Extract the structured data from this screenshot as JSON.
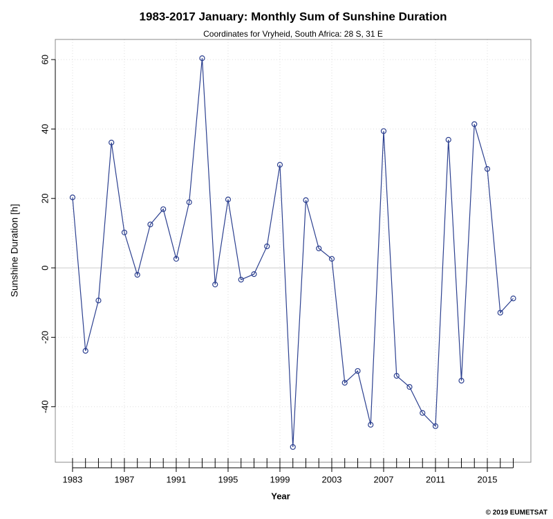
{
  "chart_data": {
    "type": "line",
    "title": "1983-2017 January: Monthly Sum of Sunshine Duration",
    "subtitle": "Coordinates for Vryheid, South Africa: 28 S, 31 E",
    "xlabel": "Year",
    "ylabel": "Sunshine Duration [h]",
    "credit": "© 2019 EUMETSAT",
    "x": [
      1983,
      1984,
      1985,
      1986,
      1987,
      1988,
      1989,
      1990,
      1991,
      1992,
      1993,
      1994,
      1995,
      1996,
      1997,
      1998,
      1999,
      2000,
      2001,
      2002,
      2003,
      2004,
      2005,
      2006,
      2007,
      2008,
      2009,
      2010,
      2011,
      2012,
      2013,
      2014,
      2015,
      2016,
      2017
    ],
    "series": [
      {
        "name": "Sunshine Duration",
        "color": "#2b3f8f",
        "values": [
          20.3,
          -23.9,
          -9.4,
          36.1,
          10.2,
          -2.0,
          12.5,
          16.9,
          2.6,
          18.9,
          60.4,
          -4.8,
          19.7,
          -3.4,
          -1.8,
          6.2,
          29.7,
          -51.6,
          19.5,
          5.6,
          2.6,
          -33.1,
          -29.7,
          -45.2,
          39.4,
          -31.1,
          -34.3,
          -41.8,
          -45.6,
          36.9,
          -32.5,
          41.4,
          28.5,
          -12.9,
          -8.8
        ]
      }
    ],
    "xlim": [
      1981.67,
      2018.36
    ],
    "xticks": [
      1983,
      1987,
      1991,
      1995,
      1999,
      2003,
      2007,
      2011,
      2015
    ],
    "ylim": [
      -56,
      65.8
    ],
    "yticks": [
      -40,
      -20,
      0,
      20,
      40,
      60
    ],
    "grid": true
  }
}
